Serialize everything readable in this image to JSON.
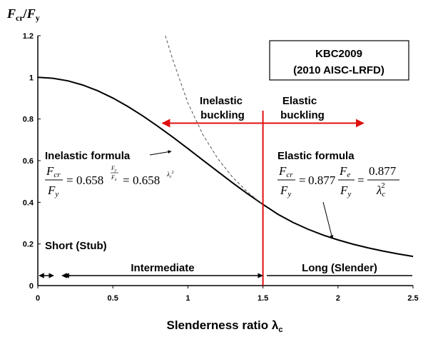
{
  "chart_data": {
    "type": "line",
    "ylabel_main": "F",
    "ylabel_sub1": "cr",
    "ylabel_slash": "/",
    "ylabel_main2": "F",
    "ylabel_sub2": "y",
    "xlabel_main": "Slenderness ratio ",
    "xlabel_lambda": "λ",
    "xlabel_sub": "c",
    "xlim": [
      0,
      2.5
    ],
    "ylim": [
      0,
      1.2
    ],
    "x_ticks": [
      0,
      0.5,
      1,
      1.5,
      2,
      2.5
    ],
    "x_tick_labels": [
      "0",
      "0.5",
      "1",
      "1.5",
      "2",
      "2.5"
    ],
    "y_ticks": [
      0,
      0.2,
      0.4,
      0.6,
      0.8,
      1,
      1.2
    ],
    "y_tick_labels": [
      "0",
      "0.2",
      "0.4",
      "0.6",
      "0.8",
      "1",
      "1.2"
    ],
    "grid": false,
    "legend_box": {
      "line1": "KBC2009",
      "line2": "(2010 AISC-LRFD)"
    },
    "series": [
      {
        "style": "solid-black",
        "points": [
          [
            0,
            1.0
          ],
          [
            0.1,
            0.9958
          ],
          [
            0.2,
            0.9834
          ],
          [
            0.3,
            0.963
          ],
          [
            0.4,
            0.9352
          ],
          [
            0.5,
            0.9006
          ],
          [
            0.6,
            0.8601
          ],
          [
            0.7,
            0.8146
          ],
          [
            0.8,
            0.765
          ],
          [
            0.9,
            0.7124
          ],
          [
            1.0,
            0.658
          ],
          [
            1.1,
            0.6025
          ],
          [
            1.2,
            0.5472
          ],
          [
            1.3,
            0.4925
          ],
          [
            1.4,
            0.4396
          ],
          [
            1.5,
            0.3898
          ],
          [
            1.6,
            0.3426
          ],
          [
            1.7,
            0.3035
          ],
          [
            1.8,
            0.2707
          ],
          [
            1.9,
            0.2429
          ],
          [
            2.0,
            0.2193
          ],
          [
            2.1,
            0.1989
          ],
          [
            2.2,
            0.1812
          ],
          [
            2.3,
            0.1658
          ],
          [
            2.4,
            0.1523
          ],
          [
            2.5,
            0.1403
          ]
        ]
      },
      {
        "style": "dashed-black",
        "points": [
          [
            0.85,
            1.2
          ],
          [
            0.9,
            1.0827
          ],
          [
            1.0,
            0.877
          ],
          [
            1.1,
            0.7248
          ],
          [
            1.2,
            0.609
          ],
          [
            1.3,
            0.5189
          ],
          [
            1.4,
            0.4474
          ],
          [
            1.5,
            0.3898
          ]
        ]
      }
    ],
    "divider_x": 1.5,
    "arrow_range": {
      "y": 0.78,
      "x_start": 0.83,
      "x_end": 2.17
    },
    "annotations": {
      "inelastic_buckling_1": "Inelastic",
      "inelastic_buckling_2": "buckling",
      "elastic_buckling_1": "Elastic",
      "elastic_buckling_2": "buckling",
      "inelastic_formula_title": "Inelastic formula",
      "elastic_formula_title": "Elastic formula",
      "short_stub": "Short (Stub)",
      "intermediate": "Intermediate",
      "long_slender": "Long (Slender)",
      "f_letter": "F",
      "sub_cr": "cr",
      "sub_y": "y",
      "sub_e": "e",
      "eq": "=",
      "coef_0658": "0.658",
      "coef_0877": "0.877",
      "lambda_letter": "λ",
      "sub_c": "c",
      "sup_2": "2"
    },
    "colors": {
      "curve": "#000000",
      "divider": "#e01010",
      "arrow": "#e01010"
    }
  }
}
